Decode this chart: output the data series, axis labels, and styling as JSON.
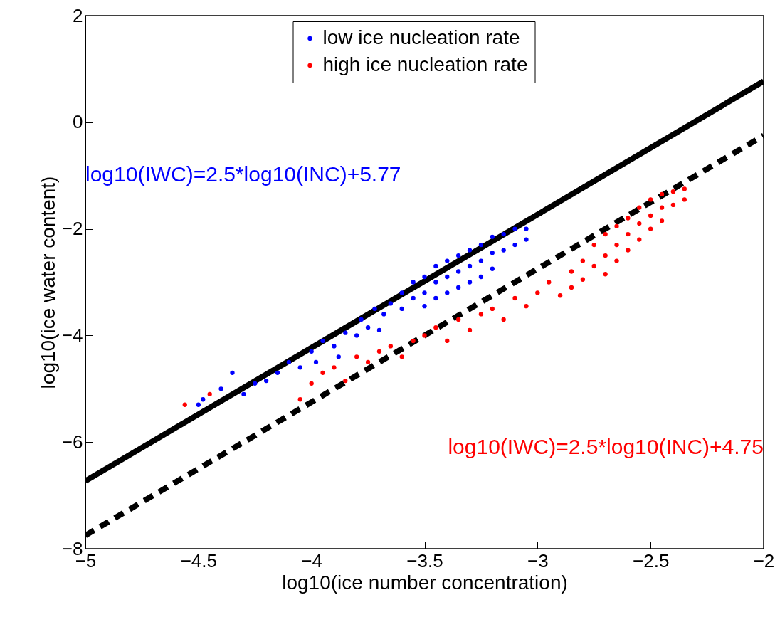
{
  "chart_data": {
    "type": "scatter",
    "xlabel": "log10(ice number concentration)",
    "ylabel": "log10(ice water content)",
    "xlim": [
      -5,
      -2
    ],
    "xticks": [
      -5,
      -4.5,
      -4,
      -3.5,
      -3,
      -2.5,
      -2
    ],
    "ylim": [
      -8,
      2
    ],
    "yticks": [
      -8,
      -6,
      -4,
      -2,
      0,
      2
    ],
    "grid": false,
    "legend": "top",
    "series": [
      {
        "name": "low ice nucleation rate",
        "color": "#0000ff",
        "marker": "circle",
        "x": [
          -4.5,
          -4.48,
          -4.4,
          -4.35,
          -4.3,
          -4.25,
          -4.2,
          -4.15,
          -4.1,
          -4.05,
          -4.0,
          -3.98,
          -3.95,
          -3.9,
          -3.88,
          -3.85,
          -3.8,
          -3.78,
          -3.75,
          -3.72,
          -3.7,
          -3.68,
          -3.65,
          -3.6,
          -3.6,
          -3.55,
          -3.55,
          -3.5,
          -3.5,
          -3.5,
          -3.45,
          -3.45,
          -3.45,
          -3.4,
          -3.4,
          -3.4,
          -3.35,
          -3.35,
          -3.35,
          -3.3,
          -3.3,
          -3.3,
          -3.25,
          -3.25,
          -3.25,
          -3.2,
          -3.2,
          -3.2,
          -3.15,
          -3.15,
          -3.1,
          -3.1,
          -3.05,
          -3.05
        ],
        "values": [
          -5.3,
          -5.2,
          -5.0,
          -4.7,
          -5.1,
          -4.9,
          -4.85,
          -4.7,
          -4.5,
          -4.6,
          -4.3,
          -4.5,
          -4.1,
          -4.2,
          -4.4,
          -3.95,
          -4.0,
          -3.7,
          -3.85,
          -3.5,
          -3.9,
          -3.6,
          -3.4,
          -3.2,
          -3.5,
          -3.0,
          -3.3,
          -2.9,
          -3.2,
          -3.45,
          -2.7,
          -3.0,
          -3.3,
          -2.6,
          -2.9,
          -3.2,
          -2.5,
          -2.8,
          -3.1,
          -2.4,
          -2.7,
          -3.0,
          -2.3,
          -2.6,
          -2.9,
          -2.15,
          -2.45,
          -2.75,
          -2.1,
          -2.4,
          -2.0,
          -2.3,
          -2.0,
          -2.2
        ]
      },
      {
        "name": "high ice nucleation rate",
        "color": "#ff0000",
        "marker": "circle",
        "x": [
          -4.56,
          -4.45,
          -4.05,
          -4.0,
          -3.95,
          -3.9,
          -3.85,
          -3.8,
          -3.75,
          -3.7,
          -3.65,
          -3.6,
          -3.55,
          -3.5,
          -3.45,
          -3.4,
          -3.35,
          -3.3,
          -3.25,
          -3.2,
          -3.15,
          -3.1,
          -3.05,
          -3.0,
          -2.95,
          -2.9,
          -2.85,
          -2.85,
          -2.8,
          -2.8,
          -2.75,
          -2.75,
          -2.7,
          -2.7,
          -2.7,
          -2.65,
          -2.65,
          -2.65,
          -2.6,
          -2.6,
          -2.6,
          -2.55,
          -2.55,
          -2.55,
          -2.5,
          -2.5,
          -2.5,
          -2.45,
          -2.45,
          -2.45,
          -2.4,
          -2.4,
          -2.35,
          -2.35
        ],
        "values": [
          -5.3,
          -5.1,
          -5.2,
          -4.9,
          -4.7,
          -4.6,
          -4.85,
          -4.4,
          -4.5,
          -4.3,
          -4.2,
          -4.4,
          -4.1,
          -4.0,
          -3.85,
          -4.1,
          -3.7,
          -3.9,
          -3.6,
          -3.5,
          -3.7,
          -3.3,
          -3.45,
          -3.2,
          -3.0,
          -3.25,
          -2.8,
          -3.1,
          -2.6,
          -2.95,
          -2.3,
          -2.7,
          -2.1,
          -2.5,
          -2.85,
          -1.95,
          -2.3,
          -2.6,
          -1.8,
          -2.1,
          -2.4,
          -1.6,
          -1.9,
          -2.2,
          -1.45,
          -1.75,
          -2.0,
          -1.35,
          -1.6,
          -1.85,
          -1.3,
          -1.55,
          -1.25,
          -1.45
        ]
      },
      {
        "type": "line",
        "color": "#000000",
        "line_style": "solid",
        "marker": "none",
        "x": [
          -5,
          -2
        ],
        "values": [
          -6.73,
          0.77
        ]
      },
      {
        "type": "line",
        "color": "#000000",
        "line_style": "dashed",
        "marker": "none",
        "x": [
          -5,
          -2
        ],
        "values": [
          -7.75,
          -0.25
        ]
      }
    ],
    "annotations": [
      "log10(IWC)=2.5*log10(INC)+5.77",
      "log10(IWC)=2.5*log10(INC)+4.75"
    ]
  }
}
